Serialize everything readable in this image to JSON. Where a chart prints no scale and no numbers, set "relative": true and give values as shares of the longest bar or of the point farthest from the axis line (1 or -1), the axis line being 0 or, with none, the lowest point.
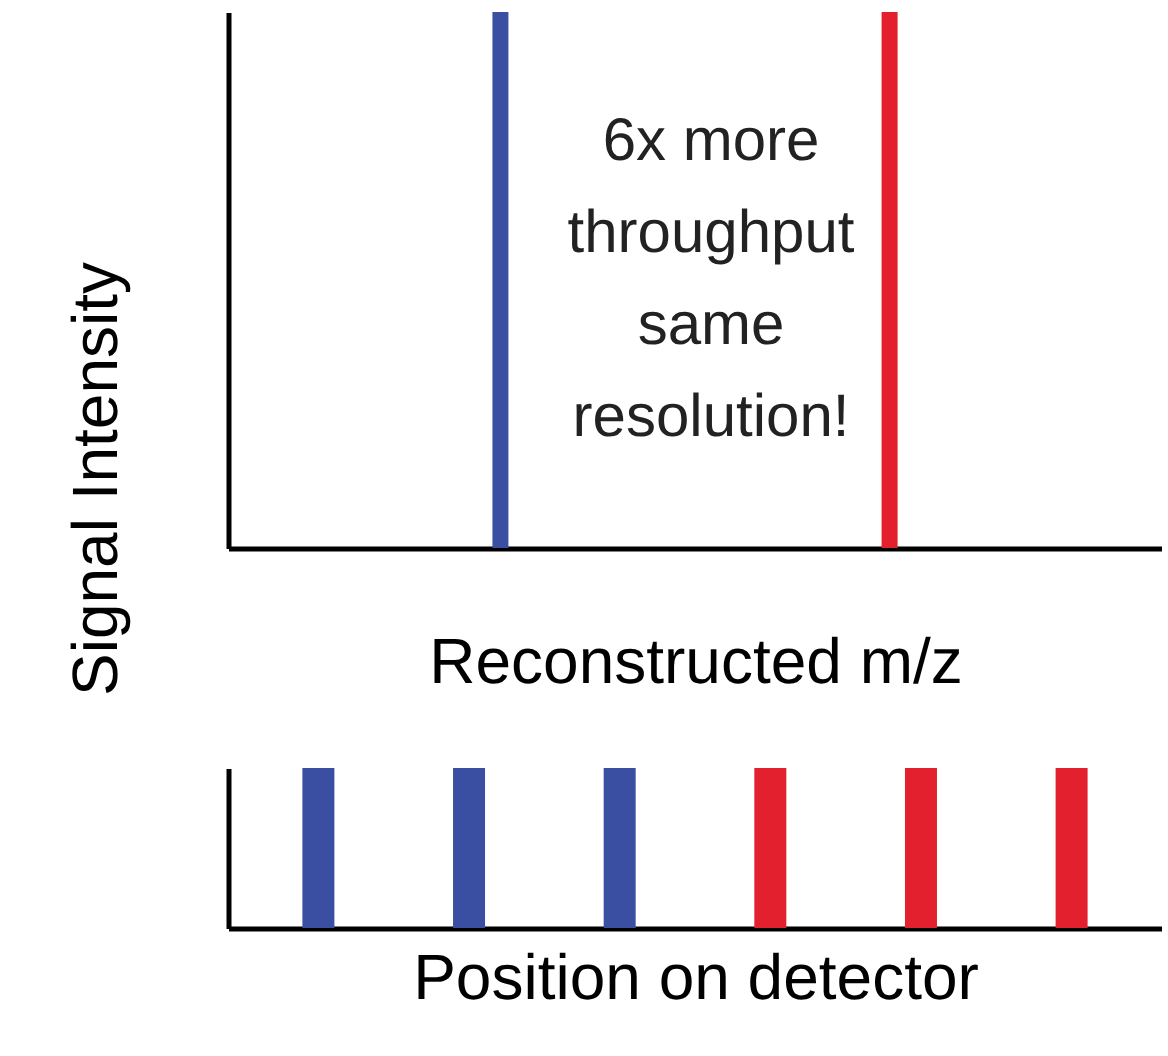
{
  "chart_data": [
    {
      "type": "bar",
      "relative": true,
      "ylabel": "Signal Intensity",
      "xlabel": "Reconstructed m/z",
      "tick_labels": false,
      "grid": false,
      "categories": [
        null,
        null
      ],
      "values": [
        1,
        1
      ],
      "colors": [
        "#3a4fa2",
        "#e3202e"
      ],
      "annotations": [
        "6x more\nthroughput\nsame\nresolution!"
      ]
    },
    {
      "type": "bar",
      "relative": true,
      "xlabel": "Position on detector",
      "tick_labels": false,
      "grid": false,
      "categories": [
        null,
        null,
        null,
        null,
        null,
        null
      ],
      "values": [
        1,
        1,
        1,
        1,
        1,
        1
      ],
      "colors": [
        "#3a4fa2",
        "#3a4fa2",
        "#3a4fa2",
        "#e3202e",
        "#e3202e",
        "#e3202e"
      ]
    }
  ]
}
